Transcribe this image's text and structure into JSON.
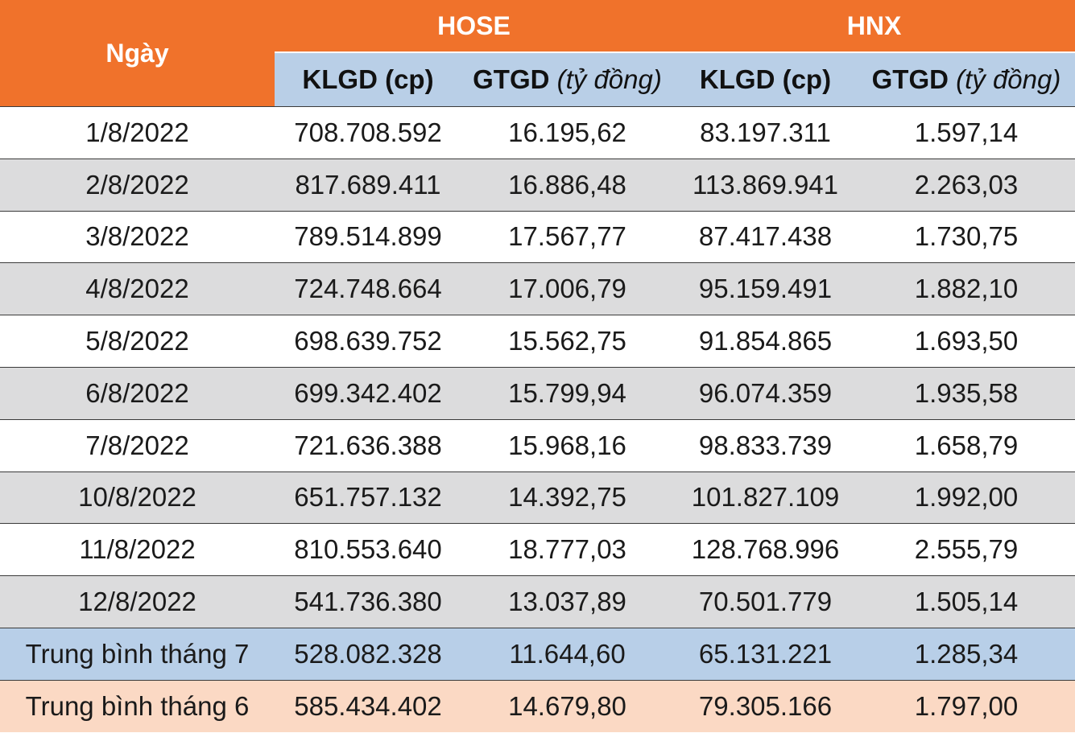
{
  "colors": {
    "header_orange": "#f0722b",
    "subheader_blue": "#b9cfe7",
    "row_gray": "#dcdcdd",
    "avg_month7": "#b8cfe8",
    "avg_month6": "#fbd9c4"
  },
  "header": {
    "date": "Ngày",
    "hose": "HOSE",
    "hnx": "HNX",
    "klgd": "KLGD (cp)",
    "gtgd": "GTGD",
    "gtgd_unit": "(tỷ đồng)"
  },
  "rows": [
    {
      "date": "1/8/2022",
      "hose_klgd": "708.708.592",
      "hose_gtgd": "16.195,62",
      "hnx_klgd": "83.197.311",
      "hnx_gtgd": "1.597,14"
    },
    {
      "date": "2/8/2022",
      "hose_klgd": "817.689.411",
      "hose_gtgd": "16.886,48",
      "hnx_klgd": "113.869.941",
      "hnx_gtgd": "2.263,03"
    },
    {
      "date": "3/8/2022",
      "hose_klgd": "789.514.899",
      "hose_gtgd": "17.567,77",
      "hnx_klgd": "87.417.438",
      "hnx_gtgd": "1.730,75"
    },
    {
      "date": "4/8/2022",
      "hose_klgd": "724.748.664",
      "hose_gtgd": "17.006,79",
      "hnx_klgd": "95.159.491",
      "hnx_gtgd": "1.882,10"
    },
    {
      "date": "5/8/2022",
      "hose_klgd": "698.639.752",
      "hose_gtgd": "15.562,75",
      "hnx_klgd": "91.854.865",
      "hnx_gtgd": "1.693,50"
    },
    {
      "date": "6/8/2022",
      "hose_klgd": "699.342.402",
      "hose_gtgd": "15.799,94",
      "hnx_klgd": "96.074.359",
      "hnx_gtgd": "1.935,58"
    },
    {
      "date": "7/8/2022",
      "hose_klgd": "721.636.388",
      "hose_gtgd": "15.968,16",
      "hnx_klgd": "98.833.739",
      "hnx_gtgd": "1.658,79"
    },
    {
      "date": "10/8/2022",
      "hose_klgd": "651.757.132",
      "hose_gtgd": "14.392,75",
      "hnx_klgd": "101.827.109",
      "hnx_gtgd": "1.992,00"
    },
    {
      "date": "11/8/2022",
      "hose_klgd": "810.553.640",
      "hose_gtgd": "18.777,03",
      "hnx_klgd": "128.768.996",
      "hnx_gtgd": "2.555,79"
    },
    {
      "date": "12/8/2022",
      "hose_klgd": "541.736.380",
      "hose_gtgd": "13.037,89",
      "hnx_klgd": "70.501.779",
      "hnx_gtgd": "1.505,14"
    }
  ],
  "averages": [
    {
      "label": "Trung bình tháng 7",
      "hose_klgd": "528.082.328",
      "hose_gtgd": "11.644,60",
      "hnx_klgd": "65.131.221",
      "hnx_gtgd": "1.285,34"
    },
    {
      "label": "Trung bình tháng 6",
      "hose_klgd": "585.434.402",
      "hose_gtgd": "14.679,80",
      "hnx_klgd": "79.305.166",
      "hnx_gtgd": "1.797,00"
    }
  ]
}
